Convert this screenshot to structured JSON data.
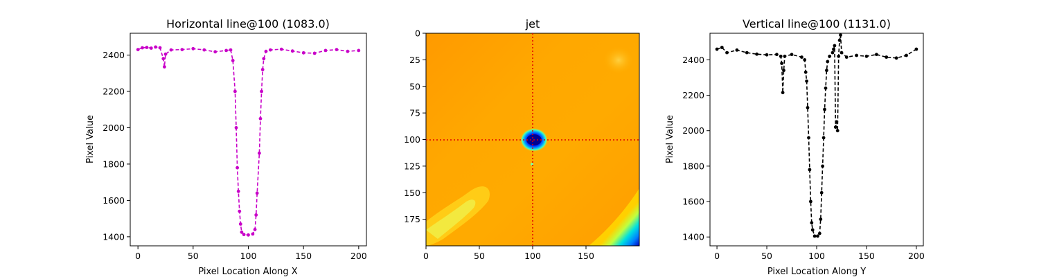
{
  "colors": {
    "left_series": "#c800c8",
    "right_series": "#000000",
    "crosshair": "#e00000"
  },
  "chart_data": [
    {
      "type": "line",
      "title": "Horizontal line@100 (1083.0)",
      "xlabel": "Pixel Location Along X",
      "ylabel": "Pixel Value",
      "xlim": [
        -7,
        207
      ],
      "ylim": [
        1350,
        2520
      ],
      "xticks": [
        0,
        50,
        100,
        150,
        200
      ],
      "yticks": [
        1400,
        1600,
        1800,
        2000,
        2200,
        2400
      ],
      "line_style": "dashed",
      "marker": "dot",
      "color": "#c800c8",
      "series": [
        {
          "profile": [
            [
              0,
              2430
            ],
            [
              4,
              2440
            ],
            [
              8,
              2442
            ],
            [
              12,
              2438
            ],
            [
              16,
              2444
            ],
            [
              20,
              2440
            ],
            [
              23,
              2380
            ],
            [
              24,
              2335
            ],
            [
              25,
              2405
            ],
            [
              30,
              2428
            ],
            [
              40,
              2430
            ],
            [
              50,
              2435
            ],
            [
              60,
              2428
            ],
            [
              70,
              2418
            ],
            [
              80,
              2425
            ],
            [
              84,
              2428
            ],
            [
              86,
              2370
            ],
            [
              88,
              2200
            ],
            [
              89,
              2000
            ],
            [
              90,
              1780
            ],
            [
              91,
              1650
            ],
            [
              92,
              1540
            ],
            [
              93,
              1470
            ],
            [
              94,
              1425
            ],
            [
              96,
              1412
            ],
            [
              100,
              1410
            ],
            [
              104,
              1415
            ],
            [
              106,
              1440
            ],
            [
              107,
              1520
            ],
            [
              108,
              1640
            ],
            [
              110,
              1860
            ],
            [
              111,
              2050
            ],
            [
              112,
              2200
            ],
            [
              113,
              2320
            ],
            [
              114,
              2380
            ],
            [
              116,
              2420
            ],
            [
              120,
              2428
            ],
            [
              130,
              2432
            ],
            [
              140,
              2422
            ],
            [
              150,
              2412
            ],
            [
              160,
              2410
            ],
            [
              170,
              2425
            ],
            [
              180,
              2430
            ],
            [
              190,
              2420
            ],
            [
              200,
              2425
            ]
          ]
        }
      ]
    },
    {
      "type": "heatmap",
      "title": "jet",
      "xlim": [
        0,
        199
      ],
      "ylim": [
        199,
        0
      ],
      "xticks": [
        0,
        50,
        100,
        150
      ],
      "yticks": [
        0,
        25,
        50,
        75,
        100,
        125,
        150,
        175
      ],
      "crosshair": {
        "x": 100,
        "y": 100
      },
      "colormap": "jet"
    },
    {
      "type": "line",
      "title": "Vertical line@100 (1131.0)",
      "xlabel": "Pixel Location Along Y",
      "ylabel": "Pixel Value",
      "xlim": [
        -7,
        207
      ],
      "ylim": [
        1350,
        2550
      ],
      "xticks": [
        0,
        50,
        100,
        150,
        200
      ],
      "yticks": [
        1400,
        1600,
        1800,
        2000,
        2200,
        2400,
        2600
      ],
      "ytick_labels_shown": [
        1400,
        1600,
        1800,
        2000,
        2200,
        2400
      ],
      "line_style": "dashed",
      "marker": "dot",
      "color": "#000000",
      "series": [
        {
          "profile": [
            [
              0,
              2460
            ],
            [
              5,
              2470
            ],
            [
              10,
              2440
            ],
            [
              20,
              2455
            ],
            [
              30,
              2440
            ],
            [
              40,
              2432
            ],
            [
              50,
              2428
            ],
            [
              60,
              2430
            ],
            [
              64,
              2420
            ],
            [
              65,
              2380
            ],
            [
              66,
              2215
            ],
            [
              67,
              2340
            ],
            [
              68,
              2420
            ],
            [
              75,
              2430
            ],
            [
              85,
              2415
            ],
            [
              88,
              2400
            ],
            [
              89,
              2330
            ],
            [
              90,
              2280
            ],
            [
              91,
              2130
            ],
            [
              92,
              1960
            ],
            [
              93,
              1780
            ],
            [
              94,
              1600
            ],
            [
              95,
              1480
            ],
            [
              96,
              1440
            ],
            [
              98,
              1405
            ],
            [
              101,
              1405
            ],
            [
              103,
              1420
            ],
            [
              104,
              1500
            ],
            [
              105,
              1650
            ],
            [
              106,
              1800
            ],
            [
              107,
              1960
            ],
            [
              108,
              2120
            ],
            [
              109,
              2240
            ],
            [
              110,
              2340
            ],
            [
              111,
              2390
            ],
            [
              113,
              2420
            ],
            [
              116,
              2440
            ],
            [
              117,
              2460
            ],
            [
              118,
              2480
            ],
            [
              119,
              2020
            ],
            [
              120,
              2050
            ],
            [
              121,
              2000
            ],
            [
              122,
              2420
            ],
            [
              123,
              2510
            ],
            [
              124,
              2540
            ],
            [
              125,
              2440
            ],
            [
              130,
              2415
            ],
            [
              140,
              2425
            ],
            [
              150,
              2420
            ],
            [
              160,
              2430
            ],
            [
              170,
              2415
            ],
            [
              180,
              2410
            ],
            [
              190,
              2425
            ],
            [
              200,
              2460
            ]
          ]
        }
      ]
    }
  ]
}
